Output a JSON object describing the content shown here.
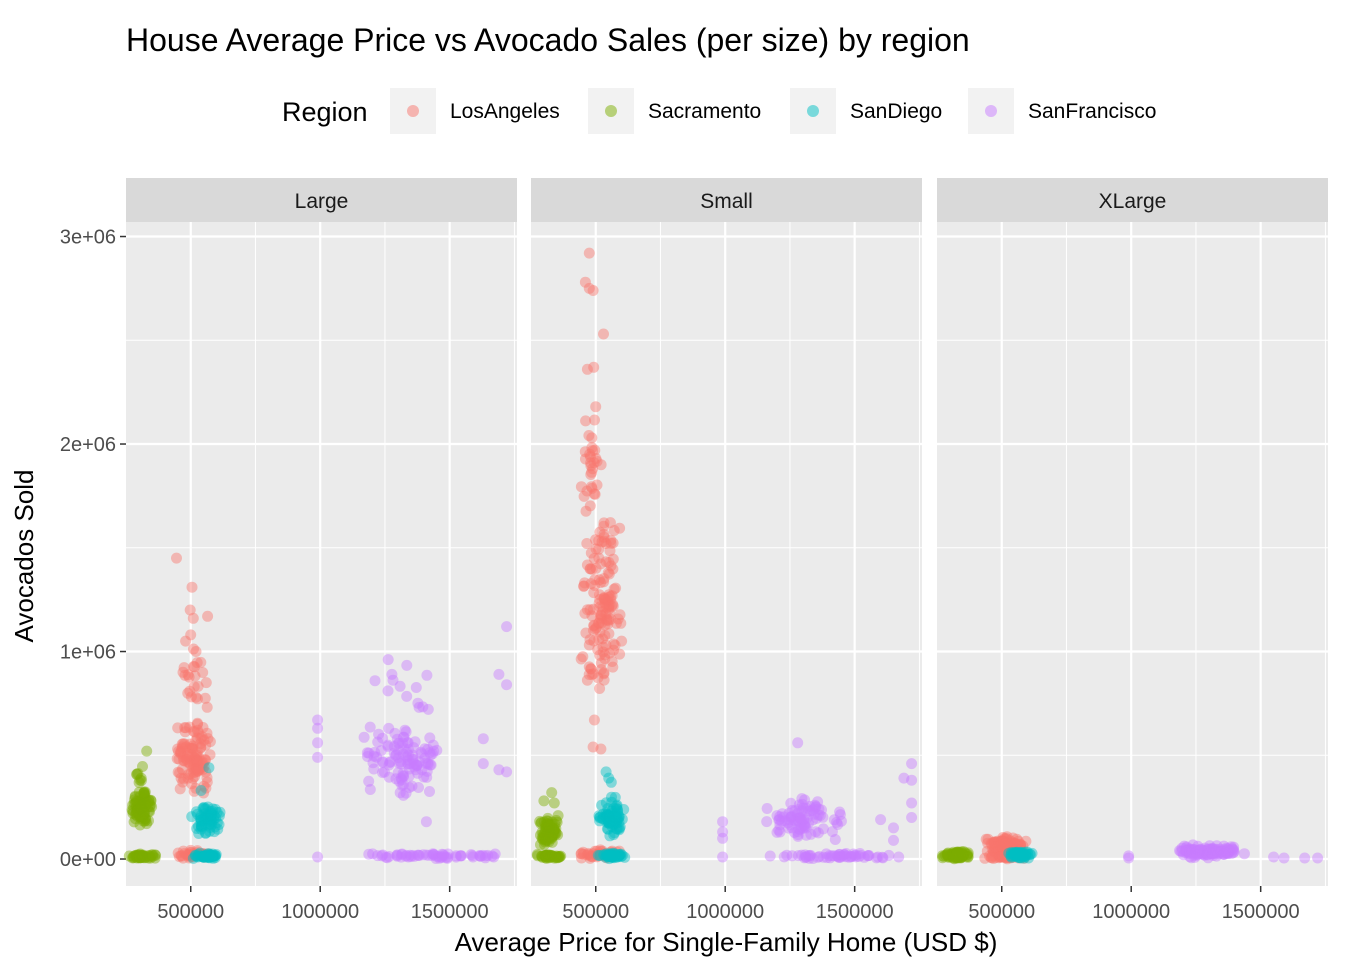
{
  "chart_data": {
    "type": "scatter",
    "title": "House Average Price vs Avocado Sales (per size) by region",
    "xlabel": "Average Price for Single-Family Home (USD $)",
    "ylabel": "Avocados Sold",
    "xlim": [
      250000,
      1760000
    ],
    "ylim": [
      -130000,
      3070000
    ],
    "x_ticks": [
      500000,
      1000000,
      1500000
    ],
    "x_tick_labels": [
      "500000",
      "1000000",
      "1500000"
    ],
    "y_ticks": [
      0,
      1000000,
      2000000,
      3000000
    ],
    "y_tick_labels": [
      "0e+00",
      "1e+06",
      "2e+06",
      "3e+06"
    ],
    "grid": true,
    "legend": {
      "title": "Region",
      "placement": "top",
      "entries": [
        "LosAngeles",
        "Sacramento",
        "SanDiego",
        "SanFrancisco"
      ]
    },
    "colors": {
      "LosAngeles": "#F8766D",
      "Sacramento": "#7CAE00",
      "SanDiego": "#00BFC4",
      "SanFrancisco": "#C77CFF"
    },
    "panels": [
      {
        "facet": "Large",
        "series": [
          {
            "name": "LosAngeles",
            "clusters": [
              {
                "x": [
                  440000,
                  580000
                ],
                "y": [
                  300000,
                  680000
                ],
                "n": 110
              },
              {
                "x": [
                  450000,
                  580000
                ],
                "y": [
                  680000,
                  1050000
                ],
                "n": 20
              },
              {
                "x": [
                  430000,
                  600000
                ],
                "y": [
                  0,
                  50000
                ],
                "n": 40
              }
            ],
            "points": [
              [
                445000,
                1450000
              ],
              [
                505000,
                1310000
              ],
              [
                498000,
                1200000
              ],
              [
                510000,
                1160000
              ],
              [
                565000,
                1170000
              ],
              [
                500000,
                1080000
              ],
              [
                480000,
                1050000
              ],
              [
                470000,
                900000
              ],
              [
                560000,
                850000
              ],
              [
                520000,
                780000
              ]
            ]
          },
          {
            "name": "Sacramento",
            "clusters": [
              {
                "x": [
                  270000,
                  350000
                ],
                "y": [
                  150000,
                  350000
                ],
                "n": 90
              },
              {
                "x": [
                  280000,
                  330000
                ],
                "y": [
                  350000,
                  450000
                ],
                "n": 8
              },
              {
                "x": [
                  260000,
                  370000
                ],
                "y": [
                  0,
                  25000
                ],
                "n": 45
              }
            ],
            "points": [
              [
                330000,
                520000
              ]
            ]
          },
          {
            "name": "SanDiego",
            "clusters": [
              {
                "x": [
                  500000,
                  620000
                ],
                "y": [
                  100000,
                  280000
                ],
                "n": 60
              },
              {
                "x": [
                  500000,
                  620000
                ],
                "y": [
                  0,
                  30000
                ],
                "n": 45
              }
            ],
            "points": [
              [
                570000,
                440000
              ],
              [
                540000,
                330000
              ]
            ]
          },
          {
            "name": "SanFrancisco",
            "clusters": [
              {
                "x": [
                  1160000,
                  1480000
                ],
                "y": [
                  300000,
                  650000
                ],
                "n": 110
              },
              {
                "x": [
                  1160000,
                  1460000
                ],
                "y": [
                  650000,
                  980000
                ],
                "n": 14
              },
              {
                "x": [
                  1150000,
                  1730000
                ],
                "y": [
                  0,
                  30000
                ],
                "n": 60
              }
            ],
            "points": [
              [
                990000,
                670000
              ],
              [
                990000,
                630000
              ],
              [
                990000,
                560000
              ],
              [
                990000,
                490000
              ],
              [
                990000,
                10000
              ],
              [
                1720000,
                1120000
              ],
              [
                1720000,
                840000
              ],
              [
                1690000,
                890000
              ],
              [
                1690000,
                430000
              ],
              [
                1720000,
                420000
              ],
              [
                1630000,
                580000
              ],
              [
                1630000,
                460000
              ],
              [
                1410000,
                180000
              ],
              [
                1590000,
                10000
              ],
              [
                1670000,
                10000
              ]
            ]
          }
        ]
      },
      {
        "facet": "Small",
        "series": [
          {
            "name": "LosAngeles",
            "clusters": [
              {
                "x": [
                  440000,
                  610000
                ],
                "y": [
                  750000,
                  1650000
                ],
                "n": 140
              },
              {
                "x": [
                  430000,
                  530000
                ],
                "y": [
                  1650000,
                  2200000
                ],
                "n": 30
              },
              {
                "x": [
                  430000,
                  600000
                ],
                "y": [
                  0,
                  50000
                ],
                "n": 40
              }
            ],
            "points": [
              [
                475000,
                2920000
              ],
              [
                460000,
                2780000
              ],
              [
                475000,
                2750000
              ],
              [
                490000,
                2740000
              ],
              [
                530000,
                2530000
              ],
              [
                468000,
                2360000
              ],
              [
                492000,
                2370000
              ],
              [
                500000,
                2180000
              ],
              [
                532000,
                1620000
              ],
              [
                600000,
                1050000
              ],
              [
                520000,
                530000
              ],
              [
                490000,
                540000
              ],
              [
                495000,
                670000
              ]
            ]
          },
          {
            "name": "Sacramento",
            "clusters": [
              {
                "x": [
                  275000,
                  360000
                ],
                "y": [
                  50000,
                  220000
                ],
                "n": 70
              },
              {
                "x": [
                  260000,
                  380000
                ],
                "y": [
                  0,
                  25000
                ],
                "n": 40
              }
            ],
            "points": [
              [
                300000,
                280000
              ],
              [
                330000,
                320000
              ],
              [
                340000,
                270000
              ]
            ]
          },
          {
            "name": "SanDiego",
            "clusters": [
              {
                "x": [
                  500000,
                  620000
                ],
                "y": [
                  100000,
                  300000
                ],
                "n": 70
              },
              {
                "x": [
                  500000,
                  620000
                ],
                "y": [
                  0,
                  30000
                ],
                "n": 40
              }
            ],
            "points": [
              [
                540000,
                420000
              ],
              [
                550000,
                390000
              ],
              [
                560000,
                370000
              ]
            ]
          },
          {
            "name": "SanFrancisco",
            "clusters": [
              {
                "x": [
                  1150000,
                  1460000
                ],
                "y": [
                  80000,
                  300000
                ],
                "n": 90
              },
              {
                "x": [
                  1150000,
                  1730000
                ],
                "y": [
                  0,
                  30000
                ],
                "n": 55
              }
            ],
            "points": [
              [
                990000,
                180000
              ],
              [
                990000,
                130000
              ],
              [
                990000,
                100000
              ],
              [
                990000,
                10000
              ],
              [
                1280000,
                560000
              ],
              [
                1720000,
                460000
              ],
              [
                1720000,
                380000
              ],
              [
                1690000,
                390000
              ],
              [
                1720000,
                270000
              ],
              [
                1720000,
                200000
              ],
              [
                1650000,
                150000
              ],
              [
                1650000,
                90000
              ],
              [
                1600000,
                190000
              ],
              [
                1590000,
                10000
              ],
              [
                1670000,
                10000
              ]
            ]
          }
        ]
      },
      {
        "facet": "XLarge",
        "series": [
          {
            "name": "LosAngeles",
            "clusters": [
              {
                "x": [
                  420000,
                  610000
                ],
                "y": [
                  20000,
                  110000
                ],
                "n": 100
              },
              {
                "x": [
                  420000,
                  600000
                ],
                "y": [
                  0,
                  20000
                ],
                "n": 40
              }
            ],
            "points": []
          },
          {
            "name": "Sacramento",
            "clusters": [
              {
                "x": [
                  260000,
                  380000
                ],
                "y": [
                  0,
                  40000
                ],
                "n": 80
              }
            ],
            "points": []
          },
          {
            "name": "SanDiego",
            "clusters": [
              {
                "x": [
                  520000,
                  620000
                ],
                "y": [
                  0,
                  40000
                ],
                "n": 50
              }
            ],
            "points": []
          },
          {
            "name": "SanFrancisco",
            "clusters": [
              {
                "x": [
                  1150000,
                  1440000
                ],
                "y": [
                  0,
                  70000
                ],
                "n": 120
              }
            ],
            "points": [
              [
                990000,
                15000
              ],
              [
                990000,
                5000
              ],
              [
                1590000,
                5000
              ],
              [
                1670000,
                5000
              ],
              [
                1720000,
                5000
              ],
              [
                1550000,
                10000
              ]
            ]
          }
        ]
      }
    ]
  }
}
